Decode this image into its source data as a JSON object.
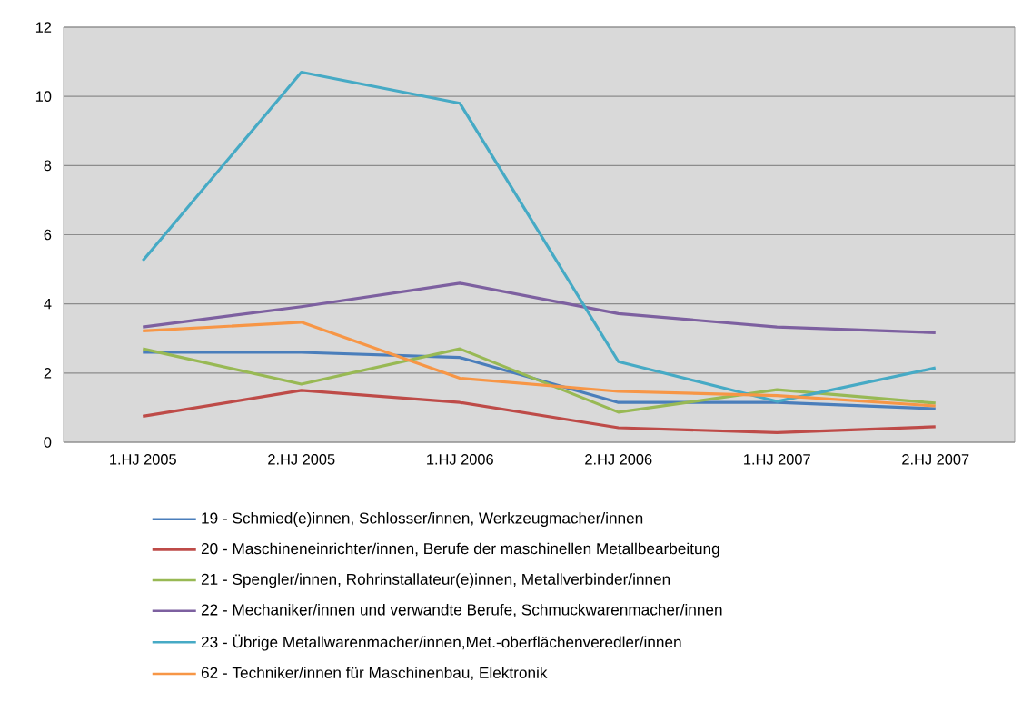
{
  "chart_data": {
    "type": "line",
    "categories": [
      "1.HJ 2005",
      "2.HJ 2005",
      "1.HJ 2006",
      "2.HJ 2006",
      "1.HJ 2007",
      "2.HJ 2007"
    ],
    "series": [
      {
        "name": "19 - Schmied(e)innen, Schlosser/innen, Werkzeugmacher/innen",
        "color": "#4a7ebb",
        "values": [
          2.6,
          2.6,
          2.45,
          1.15,
          1.15,
          0.97
        ]
      },
      {
        "name": "20 - Maschineneinrichter/innen, Berufe der maschinellen Metallbearbeitung",
        "color": "#be4b48",
        "values": [
          0.75,
          1.5,
          1.15,
          0.42,
          0.28,
          0.45
        ]
      },
      {
        "name": "21 - Spengler/innen, Rohrinstallateur(e)innen, Metallverbinder/innen",
        "color": "#98b954",
        "values": [
          2.7,
          1.68,
          2.7,
          0.87,
          1.52,
          1.13
        ]
      },
      {
        "name": "22 - Mechaniker/innen und verwandte Berufe, Schmuckwarenmacher/innen",
        "color": "#7d60a0",
        "values": [
          3.33,
          3.92,
          4.6,
          3.72,
          3.33,
          3.17
        ]
      },
      {
        "name": "23 - Übrige Metallwarenmacher/innen,Met.-oberflächenveredler/innen",
        "color": "#46aac5",
        "values": [
          5.25,
          10.7,
          9.8,
          2.33,
          1.18,
          2.15
        ]
      },
      {
        "name": "62 - Techniker/innen für Maschinenbau, Elektronik",
        "color": "#f79646",
        "values": [
          3.22,
          3.47,
          1.85,
          1.47,
          1.35,
          1.05
        ]
      }
    ],
    "ylim": [
      0,
      12
    ],
    "yticks": [
      0,
      2,
      4,
      6,
      8,
      10,
      12
    ],
    "grid": "y",
    "legend": "bottom",
    "marker": "none",
    "line_style": "solid"
  }
}
